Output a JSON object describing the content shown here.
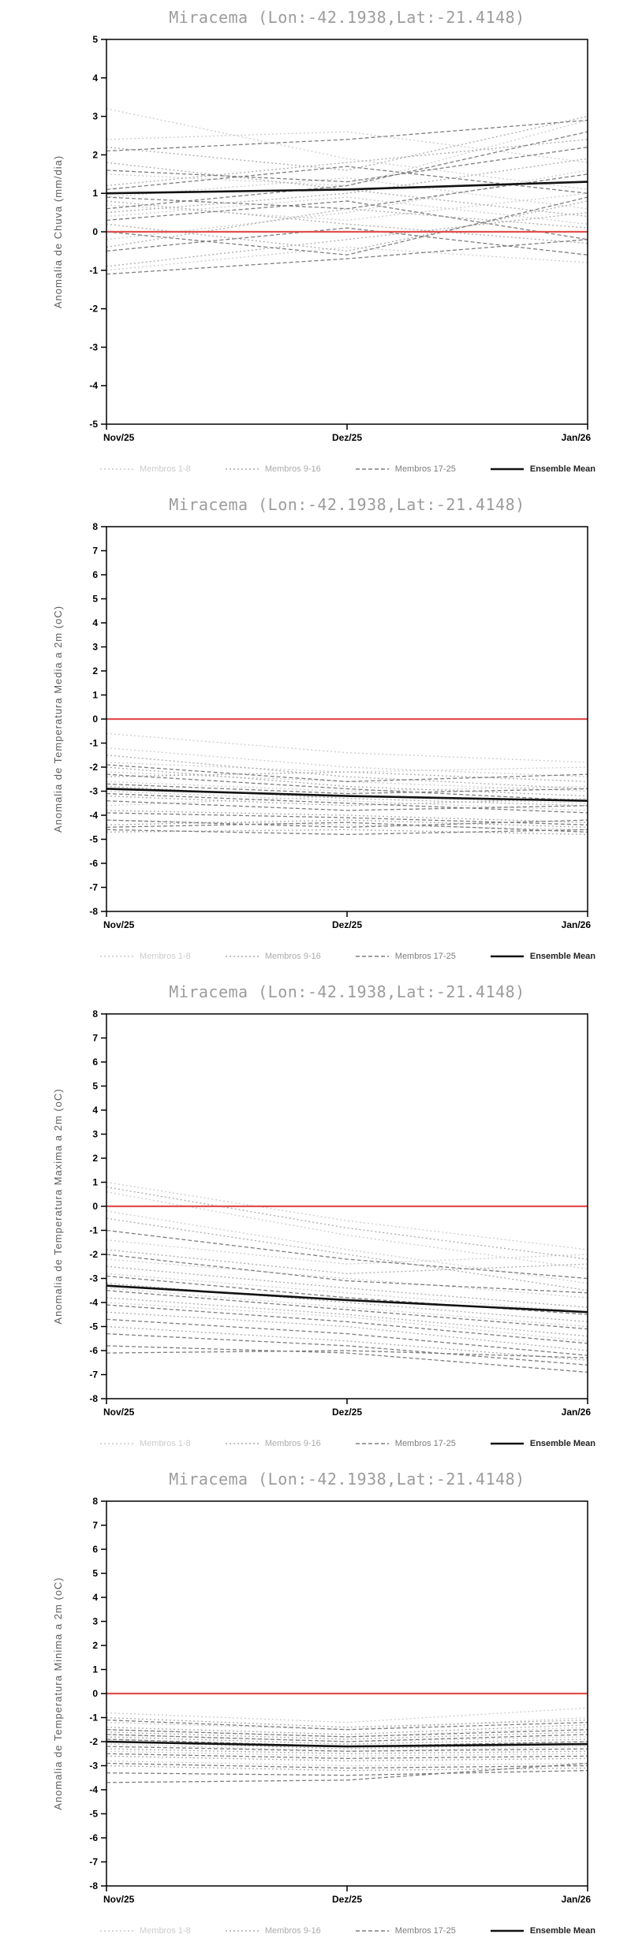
{
  "page": {
    "background": "#ffffff",
    "title_color": "#9c9c9c"
  },
  "chart_data": [
    {
      "type": "line",
      "title": "Miracema (Lon:-42.1938,Lat:-21.4148)",
      "ylabel": "Anomalia de Chuva (mm/dia)",
      "ylim": [
        -5,
        5
      ],
      "ytick_step": 1,
      "x_ticklabels": [
        "Nov/25",
        "Dez/25",
        "Jan/26"
      ],
      "grid": false,
      "zero_line": {
        "value": 0,
        "color": "#e05050"
      },
      "groups": [
        {
          "name": "Membros 1-8",
          "color": "#cccccc",
          "dash": "2,3",
          "members": [
            [
              3.2,
              1.9,
              1.1
            ],
            [
              2.4,
              2.6,
              1.8
            ],
            [
              1.5,
              1.2,
              2.9
            ],
            [
              0.9,
              1.4,
              0.6
            ],
            [
              0.7,
              0.3,
              1.0
            ],
            [
              0.4,
              0.9,
              0.2
            ],
            [
              -0.2,
              0.5,
              1.6
            ],
            [
              -1.0,
              -0.4,
              -0.8
            ]
          ]
        },
        {
          "name": "Membros 9-16",
          "color": "#ababab",
          "dash": "2,3",
          "members": [
            [
              2.2,
              1.6,
              3.0
            ],
            [
              1.8,
              1.1,
              0.4
            ],
            [
              1.2,
              1.8,
              2.4
            ],
            [
              0.8,
              0.2,
              -0.3
            ],
            [
              0.5,
              1.0,
              1.9
            ],
            [
              0.2,
              -0.5,
              0.8
            ],
            [
              -0.4,
              0.6,
              0.1
            ],
            [
              -0.9,
              -0.2,
              0.5
            ]
          ]
        },
        {
          "name": "Membros 17-25",
          "color": "#7e7e7e",
          "dash": "5,3",
          "members": [
            [
              2.1,
              2.4,
              2.9
            ],
            [
              1.6,
              1.3,
              2.2
            ],
            [
              1.1,
              1.7,
              1.0
            ],
            [
              0.9,
              0.6,
              1.5
            ],
            [
              0.6,
              1.2,
              2.6
            ],
            [
              0.3,
              0.8,
              -0.2
            ],
            [
              0.0,
              -0.6,
              0.9
            ],
            [
              -0.5,
              0.1,
              -0.6
            ],
            [
              -1.1,
              -0.7,
              -0.2
            ]
          ]
        }
      ],
      "mean": {
        "name": "Ensemble Mean",
        "color": "#111111",
        "values": [
          1.0,
          1.1,
          1.3
        ]
      }
    },
    {
      "type": "line",
      "title": "Miracema (Lon:-42.1938,Lat:-21.4148)",
      "ylabel": "Anomalia de Temperatura Media a 2m (oC)",
      "ylim": [
        -8,
        8
      ],
      "ytick_step": 1,
      "x_ticklabels": [
        "Nov/25",
        "Dez/25",
        "Jan/26"
      ],
      "grid": false,
      "zero_line": {
        "value": 0,
        "color": "#e05050"
      },
      "groups": [
        {
          "name": "Membros 1-8",
          "color": "#cccccc",
          "dash": "2,3",
          "members": [
            [
              -0.6,
              -1.4,
              -1.8
            ],
            [
              -1.2,
              -2.0,
              -2.4
            ],
            [
              -1.8,
              -2.2,
              -2.0
            ],
            [
              -2.2,
              -2.6,
              -3.0
            ],
            [
              -2.6,
              -3.0,
              -2.8
            ],
            [
              -3.0,
              -3.4,
              -3.8
            ],
            [
              -3.6,
              -3.2,
              -3.5
            ],
            [
              -4.2,
              -4.4,
              -4.6
            ]
          ]
        },
        {
          "name": "Membros 9-16",
          "color": "#ababab",
          "dash": "2,3",
          "members": [
            [
              -1.5,
              -2.4,
              -2.9
            ],
            [
              -2.0,
              -2.8,
              -3.2
            ],
            [
              -2.4,
              -2.2,
              -2.6
            ],
            [
              -2.8,
              -3.3,
              -3.6
            ],
            [
              -3.2,
              -3.6,
              -3.3
            ],
            [
              -3.8,
              -4.0,
              -4.3
            ],
            [
              -4.4,
              -4.2,
              -4.5
            ],
            [
              -4.7,
              -4.6,
              -4.8
            ]
          ]
        },
        {
          "name": "Membros 17-25",
          "color": "#7e7e7e",
          "dash": "5,3",
          "members": [
            [
              -1.9,
              -2.6,
              -2.3
            ],
            [
              -2.3,
              -2.9,
              -3.4
            ],
            [
              -2.7,
              -3.1,
              -2.9
            ],
            [
              -3.1,
              -3.5,
              -3.9
            ],
            [
              -3.4,
              -3.8,
              -3.6
            ],
            [
              -3.9,
              -4.1,
              -4.4
            ],
            [
              -4.2,
              -4.5,
              -4.2
            ],
            [
              -4.5,
              -4.3,
              -4.7
            ],
            [
              -4.6,
              -4.8,
              -4.6
            ]
          ]
        }
      ],
      "mean": {
        "name": "Ensemble Mean",
        "color": "#111111",
        "values": [
          -2.9,
          -3.2,
          -3.4
        ]
      }
    },
    {
      "type": "line",
      "title": "Miracema (Lon:-42.1938,Lat:-21.4148)",
      "ylabel": "Anomalia de Temperatura Maxima a 2m (oC)",
      "ylim": [
        -8,
        8
      ],
      "ytick_step": 1,
      "x_ticklabels": [
        "Nov/25",
        "Dez/25",
        "Jan/26"
      ],
      "grid": false,
      "zero_line": {
        "value": 0,
        "color": "#e05050"
      },
      "groups": [
        {
          "name": "Membros 1-8",
          "color": "#cccccc",
          "dash": "2,3",
          "members": [
            [
              1.0,
              -0.6,
              -1.8
            ],
            [
              0.6,
              -1.2,
              -2.6
            ],
            [
              -0.2,
              -1.8,
              -3.2
            ],
            [
              -1.4,
              -2.4,
              -2.0
            ],
            [
              -2.2,
              -3.0,
              -3.8
            ],
            [
              -2.8,
              -3.6,
              -4.4
            ],
            [
              -3.4,
              -4.2,
              -5.0
            ],
            [
              -4.0,
              -4.6,
              -5.6
            ]
          ]
        },
        {
          "name": "Membros 9-16",
          "color": "#ababab",
          "dash": "2,3",
          "members": [
            [
              0.8,
              -0.9,
              -2.2
            ],
            [
              -0.5,
              -2.0,
              -3.5
            ],
            [
              -1.8,
              -2.8,
              -2.4
            ],
            [
              -2.5,
              -3.4,
              -4.2
            ],
            [
              -3.2,
              -4.0,
              -4.8
            ],
            [
              -3.8,
              -4.5,
              -5.4
            ],
            [
              -4.4,
              -5.0,
              -6.0
            ],
            [
              -5.0,
              -5.6,
              -6.4
            ]
          ]
        },
        {
          "name": "Membros 17-25",
          "color": "#7e7e7e",
          "dash": "5,3",
          "members": [
            [
              -1.0,
              -2.2,
              -3.0
            ],
            [
              -2.0,
              -3.1,
              -3.6
            ],
            [
              -2.9,
              -3.8,
              -4.5
            ],
            [
              -3.5,
              -4.3,
              -5.1
            ],
            [
              -4.1,
              -4.8,
              -5.7
            ],
            [
              -4.7,
              -5.3,
              -6.2
            ],
            [
              -5.3,
              -5.8,
              -6.6
            ],
            [
              -5.8,
              -6.1,
              -6.9
            ],
            [
              -6.1,
              -6.0,
              -6.3
            ]
          ]
        }
      ],
      "mean": {
        "name": "Ensemble Mean",
        "color": "#111111",
        "values": [
          -3.3,
          -3.9,
          -4.4
        ]
      }
    },
    {
      "type": "line",
      "title": "Miracema (Lon:-42.1938,Lat:-21.4148)",
      "ylabel": "Anomalia de Temperatura Minima a 2m (oC)",
      "ylim": [
        -8,
        8
      ],
      "ytick_step": 1,
      "x_ticklabels": [
        "Nov/25",
        "Dez/25",
        "Jan/26"
      ],
      "grid": false,
      "zero_line": {
        "value": 0,
        "color": "#e05050"
      },
      "groups": [
        {
          "name": "Membros 1-8",
          "color": "#cccccc",
          "dash": "2,3",
          "members": [
            [
              -0.8,
              -1.2,
              -0.6
            ],
            [
              -1.2,
              -1.5,
              -1.0
            ],
            [
              -1.5,
              -1.8,
              -1.4
            ],
            [
              -1.7,
              -2.0,
              -1.8
            ],
            [
              -1.9,
              -2.2,
              -2.0
            ],
            [
              -2.1,
              -2.4,
              -2.2
            ],
            [
              -2.4,
              -2.6,
              -2.5
            ],
            [
              -2.8,
              -3.0,
              -2.9
            ]
          ]
        },
        {
          "name": "Membros 9-16",
          "color": "#ababab",
          "dash": "2,3",
          "members": [
            [
              -1.0,
              -1.4,
              -1.1
            ],
            [
              -1.4,
              -1.7,
              -1.3
            ],
            [
              -1.6,
              -1.9,
              -1.6
            ],
            [
              -1.8,
              -2.1,
              -1.9
            ],
            [
              -2.0,
              -2.3,
              -2.1
            ],
            [
              -2.3,
              -2.5,
              -2.4
            ],
            [
              -2.6,
              -2.8,
              -2.7
            ],
            [
              -3.0,
              -3.2,
              -3.1
            ]
          ]
        },
        {
          "name": "Membros 17-25",
          "color": "#7e7e7e",
          "dash": "5,3",
          "members": [
            [
              -1.1,
              -1.5,
              -1.2
            ],
            [
              -1.5,
              -1.8,
              -1.5
            ],
            [
              -1.7,
              -2.0,
              -1.7
            ],
            [
              -1.9,
              -2.2,
              -2.0
            ],
            [
              -2.2,
              -2.4,
              -2.3
            ],
            [
              -2.5,
              -2.7,
              -2.6
            ],
            [
              -2.9,
              -3.1,
              -3.0
            ],
            [
              -3.3,
              -3.4,
              -3.2
            ],
            [
              -3.7,
              -3.6,
              -2.9
            ]
          ]
        }
      ],
      "mean": {
        "name": "Ensemble Mean",
        "color": "#111111",
        "values": [
          -2.0,
          -2.2,
          -2.1
        ]
      }
    }
  ]
}
